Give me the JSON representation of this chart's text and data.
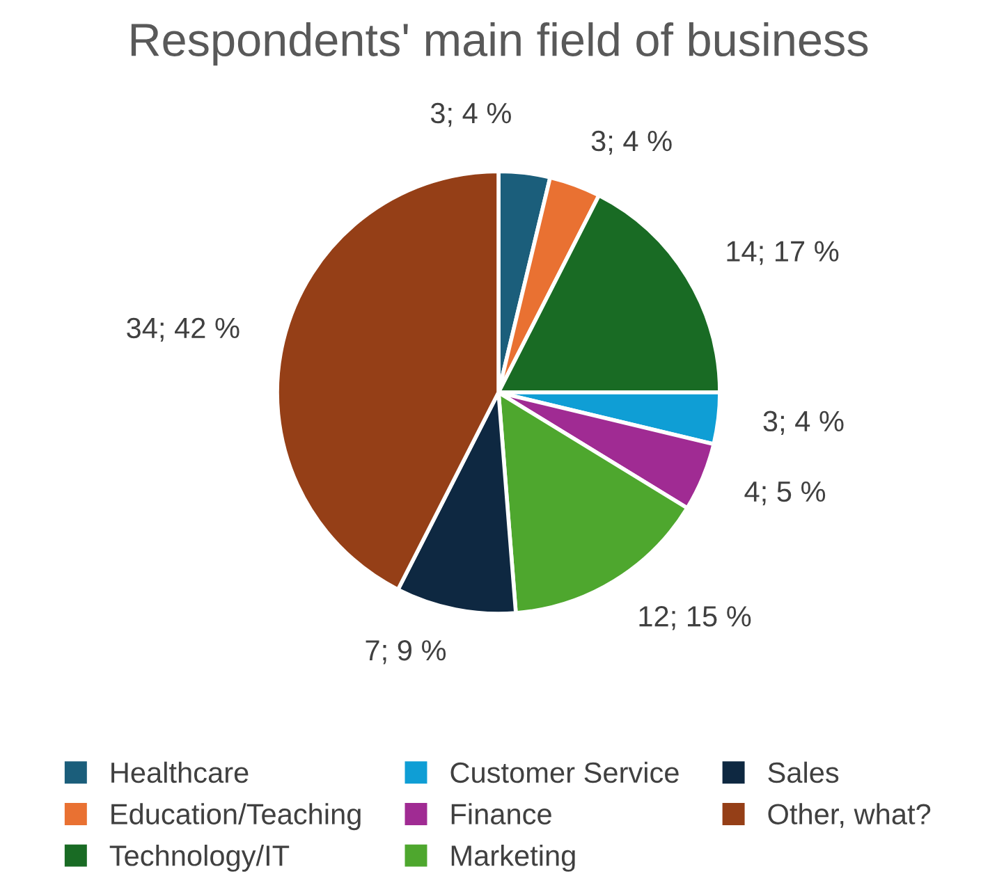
{
  "chart_data": {
    "type": "pie",
    "title": "Respondents' main field of business",
    "categories": [
      "Healthcare",
      "Education/Teaching",
      "Technology/IT",
      "Customer Service",
      "Finance",
      "Marketing",
      "Sales",
      "Other, what?"
    ],
    "values": [
      3,
      3,
      14,
      3,
      4,
      12,
      7,
      34
    ],
    "value_labels": [
      "3; 4 %",
      "3; 4 %",
      "14; 17 %",
      "3; 4 %",
      "4; 5 %",
      "12; 15 %",
      "7; 9 %",
      "34; 42 %"
    ],
    "colors": [
      "#1b5e7b",
      "#e97132",
      "#196b24",
      "#0f9ed5",
      "#a02b93",
      "#4ea72e",
      "#0e2841",
      "#953f17"
    ],
    "legend": "bottom"
  }
}
